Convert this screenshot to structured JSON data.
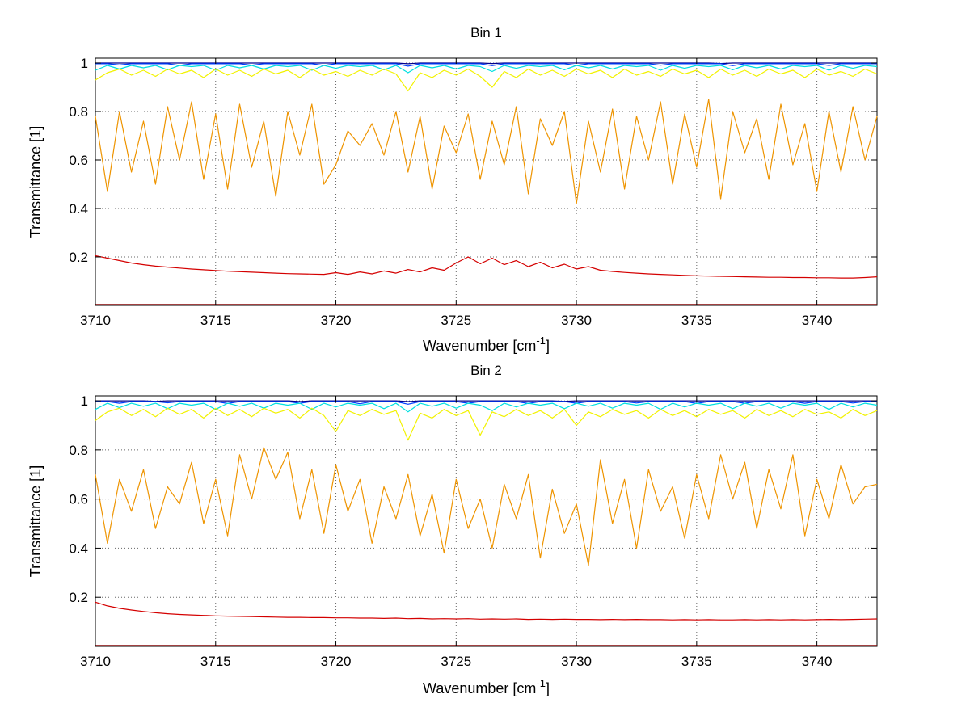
{
  "figure": {
    "background": "#ffffff",
    "grid_color": "#666666",
    "axis_color": "#000000",
    "text_color": "#000000"
  },
  "chart_data": [
    {
      "type": "line",
      "title": "Bin 1",
      "xlabel": "Wavenumber [cm⁻¹]",
      "xlabel_parts": {
        "base": "Wavenumber [cm",
        "sup": "-1",
        "close": "]"
      },
      "ylabel": "Transmittance [1]",
      "xlim": [
        3710,
        3742.5
      ],
      "ylim": [
        0,
        1.02
      ],
      "xticks": [
        3710,
        3715,
        3720,
        3725,
        3730,
        3735,
        3740
      ],
      "yticks": [
        0.2,
        0.4,
        0.6,
        0.8,
        1
      ],
      "grid": "dotted",
      "legend": "none",
      "x_start": 3710,
      "x_step": 0.5,
      "series": [
        {
          "name": "navy-flat-transmittance",
          "color": "#00008F",
          "y": [
            1,
            1,
            1,
            1,
            1,
            1,
            1,
            1,
            1,
            1,
            1,
            1,
            1,
            1,
            1,
            1,
            1,
            1,
            1,
            1,
            1,
            1,
            1,
            1,
            1,
            1,
            0.997,
            1,
            1,
            1,
            1,
            1,
            1,
            0.998,
            1,
            1,
            1,
            1,
            1,
            1,
            1,
            1,
            1,
            1,
            1,
            1,
            1,
            1,
            1,
            1,
            1,
            1,
            0.998,
            1,
            1,
            1,
            1,
            1,
            1,
            1,
            1,
            1,
            1,
            1,
            1,
            1
          ]
        },
        {
          "name": "blue-transmittance",
          "color": "#0040FF",
          "y": [
            0.997,
            0.997,
            0.992,
            0.997,
            0.997,
            0.997,
            0.997,
            0.99,
            0.997,
            0.997,
            0.997,
            0.997,
            0.997,
            0.991,
            0.997,
            0.997,
            0.997,
            0.997,
            0.997,
            0.99,
            0.997,
            0.997,
            0.997,
            0.997,
            0.997,
            0.997,
            0.987,
            0.997,
            0.997,
            0.997,
            0.997,
            0.997,
            0.997,
            0.989,
            0.997,
            0.997,
            0.997,
            0.997,
            0.997,
            0.997,
            0.99,
            0.997,
            0.997,
            0.997,
            0.997,
            0.997,
            0.997,
            0.991,
            0.997,
            0.997,
            0.997,
            0.997,
            0.997,
            0.989,
            0.997,
            0.997,
            0.997,
            0.997,
            0.997,
            0.997,
            0.997,
            0.99,
            0.997,
            0.997,
            0.997,
            0.997
          ]
        },
        {
          "name": "cyan-transmittance",
          "color": "#00E0E0",
          "y": [
            0.97,
            0.99,
            0.975,
            0.99,
            0.98,
            0.99,
            0.972,
            0.99,
            0.985,
            0.99,
            0.97,
            0.99,
            0.98,
            0.99,
            0.975,
            0.99,
            0.985,
            0.99,
            0.97,
            0.99,
            0.978,
            0.99,
            0.985,
            0.99,
            0.972,
            0.99,
            0.96,
            0.99,
            0.98,
            0.99,
            0.975,
            0.99,
            0.985,
            0.965,
            0.99,
            0.978,
            0.99,
            0.985,
            0.99,
            0.972,
            0.99,
            0.98,
            0.99,
            0.975,
            0.99,
            0.985,
            0.99,
            0.97,
            0.99,
            0.978,
            0.99,
            0.985,
            0.99,
            0.972,
            0.99,
            0.98,
            0.99,
            0.975,
            0.99,
            0.985,
            0.99,
            0.97,
            0.99,
            0.978,
            0.99,
            0.985
          ]
        },
        {
          "name": "yellow-transmittance",
          "color": "#F2F200",
          "y": [
            0.93,
            0.96,
            0.975,
            0.95,
            0.97,
            0.945,
            0.975,
            0.955,
            0.97,
            0.94,
            0.975,
            0.95,
            0.97,
            0.945,
            0.975,
            0.955,
            0.97,
            0.94,
            0.975,
            0.95,
            0.965,
            0.945,
            0.97,
            0.95,
            0.975,
            0.955,
            0.885,
            0.96,
            0.94,
            0.97,
            0.95,
            0.975,
            0.945,
            0.9,
            0.965,
            0.94,
            0.975,
            0.95,
            0.97,
            0.945,
            0.975,
            0.955,
            0.97,
            0.94,
            0.975,
            0.95,
            0.965,
            0.945,
            0.975,
            0.955,
            0.97,
            0.94,
            0.975,
            0.95,
            0.97,
            0.945,
            0.975,
            0.955,
            0.97,
            0.94,
            0.975,
            0.95,
            0.965,
            0.945,
            0.975,
            0.955
          ]
        },
        {
          "name": "orange-transmittance",
          "color": "#EE9400",
          "y": [
            0.78,
            0.47,
            0.8,
            0.55,
            0.76,
            0.5,
            0.82,
            0.6,
            0.84,
            0.52,
            0.79,
            0.48,
            0.83,
            0.57,
            0.76,
            0.45,
            0.8,
            0.62,
            0.83,
            0.5,
            0.58,
            0.72,
            0.66,
            0.75,
            0.62,
            0.8,
            0.55,
            0.78,
            0.48,
            0.74,
            0.63,
            0.79,
            0.52,
            0.76,
            0.58,
            0.82,
            0.46,
            0.77,
            0.66,
            0.8,
            0.42,
            0.76,
            0.55,
            0.81,
            0.48,
            0.78,
            0.6,
            0.84,
            0.5,
            0.79,
            0.57,
            0.85,
            0.44,
            0.8,
            0.63,
            0.77,
            0.52,
            0.83,
            0.58,
            0.75,
            0.47,
            0.8,
            0.55,
            0.82,
            0.6,
            0.78
          ]
        },
        {
          "name": "red-transmittance",
          "color": "#D40000",
          "y": [
            0.205,
            0.195,
            0.185,
            0.175,
            0.168,
            0.162,
            0.158,
            0.154,
            0.15,
            0.147,
            0.144,
            0.141,
            0.139,
            0.137,
            0.135,
            0.133,
            0.131,
            0.13,
            0.129,
            0.128,
            0.135,
            0.128,
            0.138,
            0.13,
            0.142,
            0.133,
            0.148,
            0.138,
            0.155,
            0.145,
            0.175,
            0.2,
            0.172,
            0.195,
            0.168,
            0.185,
            0.16,
            0.178,
            0.155,
            0.17,
            0.15,
            0.16,
            0.145,
            0.14,
            0.136,
            0.133,
            0.13,
            0.128,
            0.126,
            0.124,
            0.122,
            0.121,
            0.12,
            0.119,
            0.118,
            0.117,
            0.116,
            0.116,
            0.115,
            0.115,
            0.114,
            0.114,
            0.113,
            0.113,
            0.115,
            0.118
          ]
        },
        {
          "name": "maroon-saturated-transmittance",
          "color": "#800000",
          "y": 0.004
        }
      ]
    },
    {
      "type": "line",
      "title": "Bin 2",
      "xlabel": "Wavenumber [cm⁻¹]",
      "xlabel_parts": {
        "base": "Wavenumber [cm",
        "sup": "-1",
        "close": "]"
      },
      "ylabel": "Transmittance [1]",
      "xlim": [
        3710,
        3742.5
      ],
      "ylim": [
        0,
        1.02
      ],
      "xticks": [
        3710,
        3715,
        3720,
        3725,
        3730,
        3735,
        3740
      ],
      "yticks": [
        0.2,
        0.4,
        0.6,
        0.8,
        1
      ],
      "grid": "dotted",
      "legend": "none",
      "x_start": 3710,
      "x_step": 0.5,
      "series": [
        {
          "name": "navy-flat-transmittance",
          "color": "#00008F",
          "y": [
            1,
            1,
            1,
            1,
            1,
            0.998,
            1,
            1,
            1,
            1,
            1,
            1,
            1,
            1,
            1,
            1,
            1,
            0.997,
            1,
            1,
            1,
            1,
            1,
            1,
            1,
            1,
            0.997,
            1,
            1,
            1,
            1,
            1,
            1,
            1,
            1,
            1,
            1,
            1,
            1,
            0.998,
            1,
            1,
            1,
            1,
            1,
            1,
            1,
            1,
            1,
            1,
            1,
            1,
            1,
            1,
            1,
            1,
            1,
            1,
            1,
            1,
            1,
            1,
            1,
            1,
            1,
            1
          ]
        },
        {
          "name": "blue-transmittance",
          "color": "#0040FF",
          "y": [
            0.997,
            0.997,
            0.99,
            0.997,
            0.997,
            0.997,
            0.992,
            0.997,
            0.997,
            0.997,
            0.997,
            0.989,
            0.997,
            0.997,
            0.997,
            0.997,
            0.997,
            0.99,
            0.997,
            0.997,
            0.997,
            0.997,
            0.988,
            0.997,
            0.997,
            0.997,
            0.986,
            0.997,
            0.997,
            0.997,
            0.997,
            0.99,
            0.997,
            0.997,
            0.997,
            0.997,
            0.989,
            0.997,
            0.997,
            0.997,
            0.99,
            0.997,
            0.997,
            0.997,
            0.997,
            0.991,
            0.997,
            0.997,
            0.997,
            0.997,
            0.989,
            0.997,
            0.997,
            0.997,
            0.99,
            0.997,
            0.997,
            0.997,
            0.997,
            0.99,
            0.997,
            0.997,
            0.997,
            0.991,
            0.997,
            0.997
          ]
        },
        {
          "name": "cyan-transmittance",
          "color": "#00E0E0",
          "y": [
            0.965,
            0.99,
            0.972,
            0.99,
            0.978,
            0.99,
            0.968,
            0.99,
            0.982,
            0.99,
            0.965,
            0.99,
            0.978,
            0.99,
            0.97,
            0.99,
            0.982,
            0.99,
            0.965,
            0.99,
            0.975,
            0.99,
            0.982,
            0.99,
            0.968,
            0.99,
            0.955,
            0.99,
            0.978,
            0.99,
            0.97,
            0.99,
            0.982,
            0.96,
            0.99,
            0.975,
            0.99,
            0.982,
            0.99,
            0.968,
            0.99,
            0.978,
            0.99,
            0.97,
            0.99,
            0.982,
            0.99,
            0.965,
            0.99,
            0.975,
            0.99,
            0.982,
            0.99,
            0.968,
            0.99,
            0.978,
            0.99,
            0.97,
            0.99,
            0.982,
            0.99,
            0.965,
            0.99,
            0.975,
            0.99,
            0.982
          ]
        },
        {
          "name": "yellow-transmittance",
          "color": "#F2F200",
          "y": [
            0.92,
            0.955,
            0.97,
            0.94,
            0.965,
            0.935,
            0.97,
            0.945,
            0.965,
            0.93,
            0.97,
            0.94,
            0.965,
            0.935,
            0.97,
            0.95,
            0.965,
            0.93,
            0.97,
            0.94,
            0.875,
            0.96,
            0.94,
            0.965,
            0.945,
            0.96,
            0.84,
            0.95,
            0.93,
            0.965,
            0.94,
            0.96,
            0.86,
            0.955,
            0.935,
            0.965,
            0.94,
            0.96,
            0.93,
            0.965,
            0.9,
            0.955,
            0.935,
            0.965,
            0.945,
            0.96,
            0.93,
            0.965,
            0.94,
            0.96,
            0.935,
            0.965,
            0.945,
            0.96,
            0.93,
            0.965,
            0.94,
            0.96,
            0.935,
            0.965,
            0.945,
            0.955,
            0.93,
            0.965,
            0.94,
            0.96
          ]
        },
        {
          "name": "orange-transmittance",
          "color": "#EE9400",
          "y": [
            0.7,
            0.42,
            0.68,
            0.55,
            0.72,
            0.48,
            0.65,
            0.58,
            0.75,
            0.5,
            0.68,
            0.45,
            0.78,
            0.6,
            0.81,
            0.68,
            0.79,
            0.52,
            0.72,
            0.46,
            0.74,
            0.55,
            0.68,
            0.42,
            0.65,
            0.52,
            0.7,
            0.45,
            0.62,
            0.38,
            0.68,
            0.48,
            0.6,
            0.4,
            0.66,
            0.52,
            0.7,
            0.36,
            0.64,
            0.46,
            0.58,
            0.33,
            0.76,
            0.5,
            0.68,
            0.4,
            0.72,
            0.55,
            0.65,
            0.44,
            0.7,
            0.52,
            0.78,
            0.6,
            0.75,
            0.48,
            0.72,
            0.56,
            0.78,
            0.45,
            0.68,
            0.52,
            0.74,
            0.58,
            0.65,
            0.66
          ]
        },
        {
          "name": "red-transmittance",
          "color": "#D40000",
          "y": [
            0.18,
            0.165,
            0.155,
            0.148,
            0.142,
            0.137,
            0.133,
            0.13,
            0.128,
            0.126,
            0.124,
            0.123,
            0.122,
            0.121,
            0.12,
            0.119,
            0.118,
            0.118,
            0.117,
            0.117,
            0.116,
            0.116,
            0.115,
            0.115,
            0.114,
            0.115,
            0.113,
            0.114,
            0.112,
            0.113,
            0.112,
            0.113,
            0.111,
            0.112,
            0.111,
            0.112,
            0.11,
            0.111,
            0.11,
            0.111,
            0.11,
            0.11,
            0.109,
            0.11,
            0.109,
            0.11,
            0.109,
            0.109,
            0.108,
            0.109,
            0.108,
            0.109,
            0.108,
            0.108,
            0.109,
            0.108,
            0.109,
            0.108,
            0.109,
            0.108,
            0.109,
            0.11,
            0.109,
            0.11,
            0.111,
            0.112
          ]
        },
        {
          "name": "maroon-saturated-transmittance",
          "color": "#800000",
          "y": 0.004
        }
      ]
    }
  ]
}
